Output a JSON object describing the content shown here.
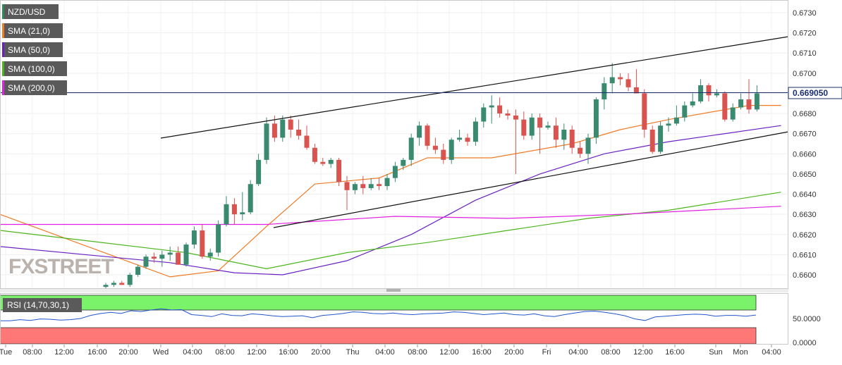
{
  "chart_data": [
    {
      "type": "line",
      "title": "NZD/USD",
      "ylim": [
        0.6595,
        0.6737
      ],
      "y_ticks": [
        "0.6730",
        "0.6720",
        "0.6710",
        "0.6700",
        "0.6690",
        "0.6680",
        "0.6670",
        "0.6660",
        "0.6650",
        "0.6640",
        "0.6630",
        "0.6620",
        "0.6610",
        "0.6600"
      ],
      "current_price": "0.669050",
      "grid": true,
      "series": [
        {
          "name": "SMA (21,0)",
          "color": "#f07a26"
        },
        {
          "name": "SMA (50,0)",
          "color": "#6a21c2"
        },
        {
          "name": "SMA (100,0)",
          "color": "#4cb51c"
        },
        {
          "name": "SMA (200,0)",
          "color": "#e01fe0"
        }
      ],
      "x_labels": [
        "Tue",
        "08:00",
        "12:00",
        "16:00",
        "20:00",
        "Wed",
        "04:00",
        "08:00",
        "12:00",
        "16:00",
        "20:00",
        "Thu",
        "04:00",
        "08:00",
        "12:00",
        "16:00",
        "20:00",
        "Fri",
        "04:00",
        "08:00",
        "12:00",
        "16:00",
        "Sun",
        "Mon",
        "04:00"
      ],
      "watermark": "FXSTREET",
      "candles": [
        [
          0.6594,
          0.6596,
          0.6593,
          0.6595
        ],
        [
          0.6595,
          0.6597,
          0.6594,
          0.6596
        ],
        [
          0.6596,
          0.6597,
          0.6595,
          0.6595
        ],
        [
          0.6595,
          0.6601,
          0.6594,
          0.66
        ],
        [
          0.66,
          0.6605,
          0.6599,
          0.6604
        ],
        [
          0.6604,
          0.661,
          0.6603,
          0.6609
        ],
        [
          0.6609,
          0.6611,
          0.6606,
          0.6608
        ],
        [
          0.6608,
          0.6612,
          0.6604,
          0.661
        ],
        [
          0.661,
          0.6614,
          0.6607,
          0.6611
        ],
        [
          0.6611,
          0.6614,
          0.6605,
          0.6605
        ],
        [
          0.6605,
          0.6616,
          0.6604,
          0.6615
        ],
        [
          0.6615,
          0.6624,
          0.6613,
          0.6622
        ],
        [
          0.6622,
          0.6625,
          0.6608,
          0.6609
        ],
        [
          0.6609,
          0.6613,
          0.6607,
          0.6611
        ],
        [
          0.6611,
          0.6627,
          0.6609,
          0.6625
        ],
        [
          0.6625,
          0.6639,
          0.6624,
          0.6635
        ],
        [
          0.6635,
          0.6638,
          0.6625,
          0.663
        ],
        [
          0.663,
          0.6641,
          0.6627,
          0.6631
        ],
        [
          0.6631,
          0.6647,
          0.663,
          0.6645
        ],
        [
          0.6645,
          0.666,
          0.6644,
          0.6657
        ],
        [
          0.6657,
          0.6678,
          0.6655,
          0.6675
        ],
        [
          0.6675,
          0.6679,
          0.6666,
          0.6668
        ],
        [
          0.6668,
          0.6679,
          0.6666,
          0.6677
        ],
        [
          0.6677,
          0.6679,
          0.6668,
          0.6672
        ],
        [
          0.6672,
          0.6677,
          0.6667,
          0.6669
        ],
        [
          0.6669,
          0.6674,
          0.6662,
          0.6663
        ],
        [
          0.6663,
          0.6665,
          0.6655,
          0.6656
        ],
        [
          0.6656,
          0.6658,
          0.6654,
          0.6655
        ],
        [
          0.6655,
          0.6658,
          0.6653,
          0.6657
        ],
        [
          0.6657,
          0.6658,
          0.6644,
          0.6646
        ],
        [
          0.6646,
          0.6649,
          0.6632,
          0.6642
        ],
        [
          0.6642,
          0.6646,
          0.664,
          0.6645
        ],
        [
          0.6645,
          0.6649,
          0.664,
          0.6643
        ],
        [
          0.6643,
          0.6648,
          0.6642,
          0.6645
        ],
        [
          0.6645,
          0.6648,
          0.6642,
          0.6644
        ],
        [
          0.6644,
          0.665,
          0.6642,
          0.6648
        ],
        [
          0.6648,
          0.6656,
          0.6646,
          0.6654
        ],
        [
          0.6654,
          0.6658,
          0.6652,
          0.6657
        ],
        [
          0.6657,
          0.667,
          0.6654,
          0.6668
        ],
        [
          0.6668,
          0.6676,
          0.6664,
          0.6674
        ],
        [
          0.6674,
          0.6675,
          0.6662,
          0.6664
        ],
        [
          0.6664,
          0.6668,
          0.666,
          0.6662
        ],
        [
          0.6662,
          0.6665,
          0.6655,
          0.6657
        ],
        [
          0.6657,
          0.6668,
          0.6655,
          0.6667
        ],
        [
          0.6667,
          0.6672,
          0.6666,
          0.6668
        ],
        [
          0.6668,
          0.667,
          0.6664,
          0.6666
        ],
        [
          0.6666,
          0.6678,
          0.6664,
          0.6676
        ],
        [
          0.6676,
          0.6685,
          0.6673,
          0.6683
        ],
        [
          0.6683,
          0.6689,
          0.6675,
          0.6684
        ],
        [
          0.6684,
          0.6688,
          0.6678,
          0.668
        ],
        [
          0.668,
          0.6682,
          0.6677,
          0.6679
        ],
        [
          0.6679,
          0.6682,
          0.665,
          0.6677
        ],
        [
          0.6677,
          0.6681,
          0.6667,
          0.6669
        ],
        [
          0.6669,
          0.668,
          0.6667,
          0.6678
        ],
        [
          0.6678,
          0.668,
          0.666,
          0.6673
        ],
        [
          0.6673,
          0.6676,
          0.6672,
          0.6674
        ],
        [
          0.6674,
          0.6678,
          0.6663,
          0.6667
        ],
        [
          0.6667,
          0.6675,
          0.6662,
          0.6672
        ],
        [
          0.6672,
          0.6674,
          0.666,
          0.6663
        ],
        [
          0.6663,
          0.6666,
          0.6658,
          0.666
        ],
        [
          0.666,
          0.667,
          0.6655,
          0.6668
        ],
        [
          0.6668,
          0.6688,
          0.6665,
          0.6687
        ],
        [
          0.6687,
          0.6698,
          0.6682,
          0.6695
        ],
        [
          0.6695,
          0.6705,
          0.669,
          0.6698
        ],
        [
          0.6698,
          0.67,
          0.6694,
          0.6697
        ],
        [
          0.6697,
          0.67,
          0.6691,
          0.6693
        ],
        [
          0.6693,
          0.6702,
          0.669,
          0.669
        ],
        [
          0.669,
          0.6692,
          0.6668,
          0.6672
        ],
        [
          0.6672,
          0.6674,
          0.666,
          0.6661
        ],
        [
          0.6661,
          0.6676,
          0.666,
          0.6674
        ],
        [
          0.6674,
          0.6678,
          0.6671,
          0.6675
        ],
        [
          0.6675,
          0.6684,
          0.6674,
          0.6678
        ],
        [
          0.6678,
          0.6686,
          0.6676,
          0.6684
        ],
        [
          0.6684,
          0.669,
          0.6683,
          0.6686
        ],
        [
          0.6686,
          0.6697,
          0.6685,
          0.6694
        ],
        [
          0.6694,
          0.6695,
          0.6686,
          0.6689
        ],
        [
          0.6689,
          0.6692,
          0.6688,
          0.669
        ],
        [
          0.669,
          0.6691,
          0.6676,
          0.6677
        ],
        [
          0.6677,
          0.6685,
          0.6676,
          0.6683
        ],
        [
          0.6683,
          0.669,
          0.6682,
          0.6687
        ],
        [
          0.6687,
          0.6697,
          0.668,
          0.6682
        ],
        [
          0.6682,
          0.6694,
          0.6681,
          0.669
        ]
      ],
      "sma21": [
        [
          0,
          0.663
        ],
        [
          8,
          0.6599
        ],
        [
          14,
          0.6602
        ],
        [
          20,
          0.6624
        ],
        [
          26,
          0.6645
        ],
        [
          34,
          0.6648
        ],
        [
          40,
          0.6658
        ],
        [
          48,
          0.6658
        ],
        [
          58,
          0.6665
        ],
        [
          64,
          0.6672
        ],
        [
          70,
          0.6677
        ],
        [
          80,
          0.6684
        ],
        [
          84,
          0.6684
        ]
      ],
      "sma50": [
        [
          0,
          0.6614
        ],
        [
          8,
          0.6606
        ],
        [
          16,
          0.6601
        ],
        [
          22,
          0.66
        ],
        [
          30,
          0.6607
        ],
        [
          38,
          0.662
        ],
        [
          46,
          0.6637
        ],
        [
          54,
          0.665
        ],
        [
          62,
          0.666
        ],
        [
          70,
          0.6666
        ],
        [
          84,
          0.6674
        ]
      ],
      "sma100": [
        [
          0,
          0.6622
        ],
        [
          10,
          0.6611
        ],
        [
          20,
          0.6603
        ],
        [
          30,
          0.6611
        ],
        [
          40,
          0.6616
        ],
        [
          50,
          0.6622
        ],
        [
          60,
          0.6628
        ],
        [
          70,
          0.6632
        ],
        [
          84,
          0.6641
        ]
      ],
      "sma200": [
        [
          0,
          0.6625
        ],
        [
          20,
          0.6625
        ],
        [
          36,
          0.6629
        ],
        [
          50,
          0.6628
        ],
        [
          64,
          0.663
        ],
        [
          84,
          0.6634
        ]
      ]
    },
    {
      "type": "line",
      "title": "RSI (14,70,30,1)",
      "ylim": [
        0,
        100
      ],
      "y_ticks": [
        "50.0000",
        "0.0000"
      ],
      "series": [
        {
          "name": "RSI (14,70,30,1)",
          "color": "#2255cc"
        }
      ],
      "values": [
        44,
        44,
        47,
        45,
        49,
        48,
        46,
        47,
        50,
        58,
        63,
        66,
        63,
        70,
        68,
        72,
        75,
        72,
        73,
        60,
        58,
        55,
        62,
        58,
        57,
        62,
        60,
        57,
        55,
        56,
        57,
        52,
        58,
        60,
        63,
        67,
        66,
        63,
        62,
        64,
        61,
        60,
        62,
        63,
        64,
        67,
        66,
        63,
        60,
        62,
        64,
        60,
        59,
        62,
        57,
        55,
        60,
        64,
        68,
        69,
        66,
        62,
        57,
        49,
        45,
        54,
        56,
        58,
        60,
        61,
        60,
        56,
        58,
        58,
        56,
        59
      ]
    }
  ]
}
